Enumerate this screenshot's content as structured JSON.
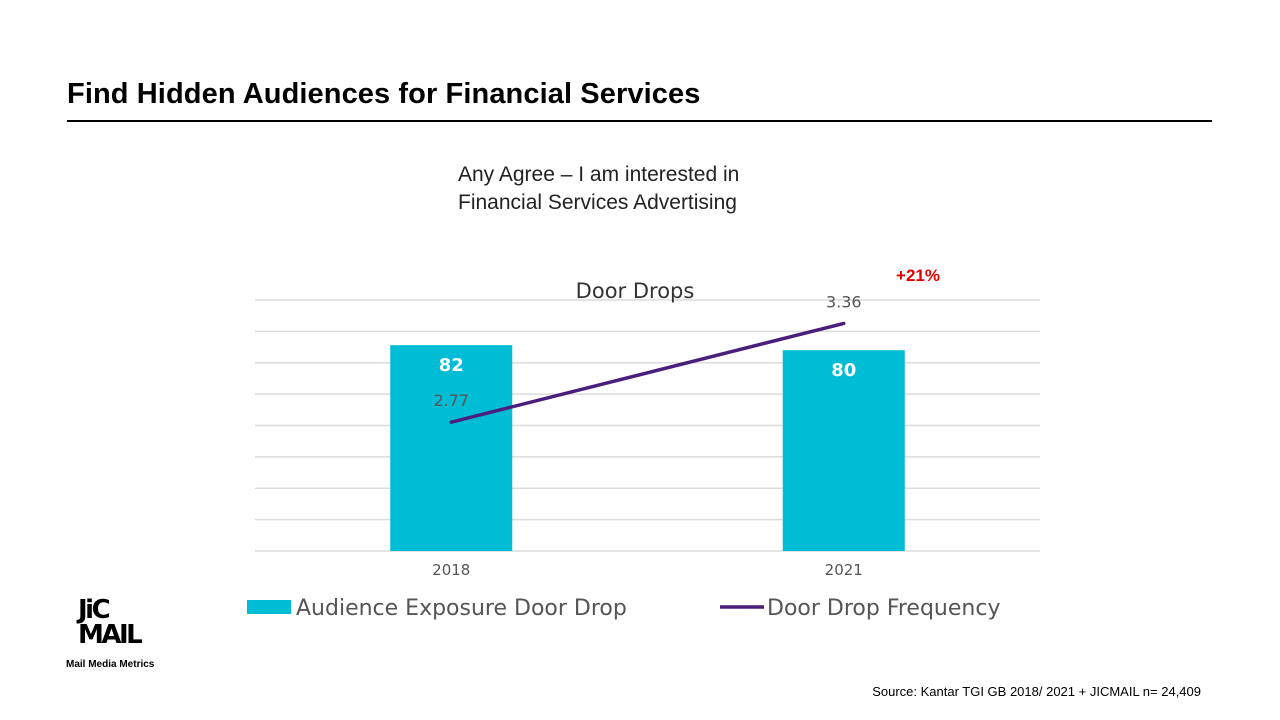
{
  "slide": {
    "title": "Find Hidden Audiences for Financial Services",
    "chart_heading_line1": "Any Agree – I am interested in",
    "chart_heading_line2": "Financial Services Advertising",
    "source": "Source:  Kantar TGI GB 2018/ 2021 + JICMAIL  n= 24,409"
  },
  "logo": {
    "line1": "JiC",
    "line2": "MAIL",
    "tagline": "Mail Media Metrics"
  },
  "chart_data": {
    "type": "bar",
    "title": "Door Drops",
    "categories": [
      "2018",
      "2021"
    ],
    "series": [
      {
        "name": "Audience Exposure Door Drop",
        "type": "bar",
        "values": [
          82,
          80
        ],
        "color": "#00BCD4",
        "label_color": "#ffffff"
      },
      {
        "name": "Door Drop Frequency",
        "type": "line",
        "values": [
          2.77,
          3.36
        ],
        "color": "#4B1E7E",
        "axis": "secondary"
      }
    ],
    "annotation": {
      "text": "+21%",
      "color": "#E00000"
    },
    "grid": true,
    "legend": "bottom",
    "ylim": [
      0,
      100
    ],
    "y2lim": [
      2.0,
      3.5
    ]
  }
}
